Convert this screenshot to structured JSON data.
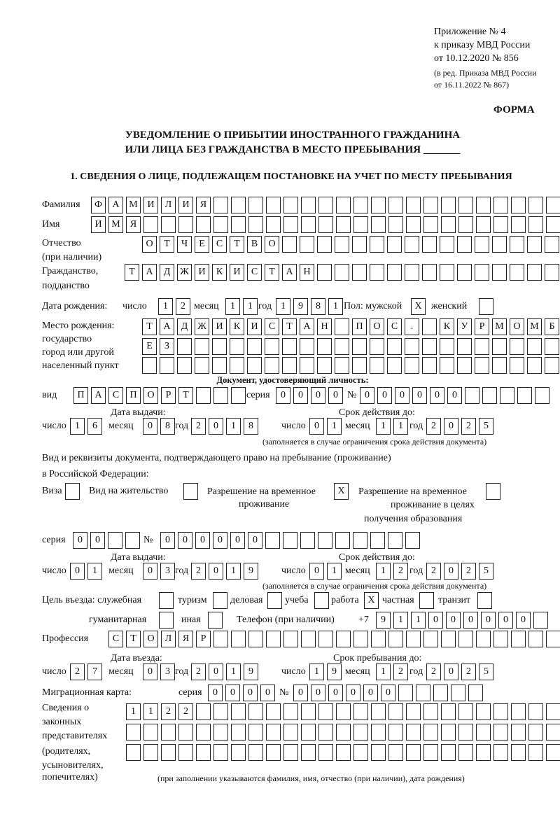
{
  "header": {
    "appendix": "Приложение № 4",
    "order_ref": "к приказу МВД России",
    "order_date": "от 10.12.2020 № 856",
    "edit_ref": "(в ред. Приказа МВД России",
    "edit_date": "от 16.11.2022 № 867)",
    "form_label": "ФОРМА",
    "title_line1": "УВЕДОМЛЕНИЕ О ПРИБЫТИИ ИНОСТРАННОГО ГРАЖДАНИНА",
    "title_line2": "ИЛИ ЛИЦА БЕЗ ГРАЖДАНСТВА В МЕСТО ПРЕБЫВАНИЯ _______"
  },
  "section1": {
    "heading": "1. СВЕДЕНИЯ О ЛИЦЕ, ПОДЛЕЖАЩЕМ ПОСТАНОВКЕ НА УЧЕТ ПО МЕСТУ ПРЕБЫВАНИЯ",
    "surname_label": "Фамилия",
    "surname": [
      "Ф",
      "А",
      "М",
      "И",
      "Л",
      "И",
      "Я",
      "",
      "",
      "",
      "",
      "",
      "",
      "",
      "",
      "",
      "",
      "",
      "",
      "",
      "",
      "",
      "",
      "",
      "",
      "",
      ""
    ],
    "name_label": "Имя",
    "name": [
      "И",
      "М",
      "Я",
      "",
      "",
      "",
      "",
      "",
      "",
      "",
      "",
      "",
      "",
      "",
      "",
      "",
      "",
      "",
      "",
      "",
      "",
      "",
      "",
      "",
      "",
      "",
      ""
    ],
    "patronymic_label1": "Отчество",
    "patronymic_label2": "(при наличии)",
    "patronymic": [
      "О",
      "Т",
      "Ч",
      "Е",
      "С",
      "Т",
      "В",
      "О",
      "",
      "",
      "",
      "",
      "",
      "",
      "",
      "",
      "",
      "",
      "",
      "",
      "",
      "",
      "",
      "",
      ""
    ],
    "citizenship_label1": "Гражданство,",
    "citizenship_label2": "подданство",
    "citizenship": [
      "Т",
      "А",
      "Д",
      "Ж",
      "И",
      "К",
      "И",
      "С",
      "Т",
      "А",
      "Н",
      "",
      "",
      "",
      "",
      "",
      "",
      "",
      "",
      "",
      "",
      "",
      "",
      "",
      ""
    ],
    "birth_date_label": "Дата рождения:",
    "day_label": "число",
    "month_label": "месяц",
    "year_label": "год",
    "birth_day": [
      "1",
      "2"
    ],
    "birth_month": [
      "1",
      "1"
    ],
    "birth_year": [
      "1",
      "9",
      "8",
      "1"
    ],
    "sex_label": "Пол: мужской",
    "male": "X",
    "female_label": "женский",
    "female": "",
    "birth_place_label1": "Место рождения:",
    "birth_place_label2": "государство",
    "birth_place_label3": "город или другой",
    "birth_place_label4": "населенный пункт",
    "birth_place_row1": [
      "Т",
      "А",
      "Д",
      "Ж",
      "И",
      "К",
      "И",
      "С",
      "Т",
      "А",
      "Н",
      "",
      "П",
      "О",
      "С",
      ".",
      "",
      "К",
      "У",
      "Р",
      "М",
      "О",
      "М",
      "Б"
    ],
    "birth_place_row2": [
      "Е",
      "З",
      "",
      "",
      "",
      "",
      "",
      "",
      "",
      "",
      "",
      "",
      "",
      "",
      "",
      "",
      "",
      "",
      "",
      "",
      "",
      "",
      "",
      ""
    ],
    "birth_place_row3": [
      "",
      "",
      "",
      "",
      "",
      "",
      "",
      "",
      "",
      "",
      "",
      "",
      "",
      "",
      "",
      "",
      "",
      "",
      "",
      "",
      "",
      "",
      "",
      ""
    ],
    "id_doc_heading": "Документ, удостоверяющий личность:",
    "doc_type_label": "вид",
    "doc_type": [
      "П",
      "А",
      "С",
      "П",
      "О",
      "Р",
      "Т",
      "",
      "",
      ""
    ],
    "series_label": "серия",
    "doc_series": [
      "0",
      "0",
      "0",
      "0"
    ],
    "number_label": "№",
    "doc_number": [
      "0",
      "0",
      "0",
      "0",
      "0",
      "0",
      "",
      "",
      "",
      "",
      ""
    ],
    "issue_date_label": "Дата выдачи:",
    "valid_until_label": "Срок действия до:",
    "doc_issue_day": [
      "1",
      "6"
    ],
    "doc_issue_month": [
      "0",
      "8"
    ],
    "doc_issue_year": [
      "2",
      "0",
      "1",
      "8"
    ],
    "doc_valid_day": [
      "0",
      "1"
    ],
    "doc_valid_month": [
      "1",
      "1"
    ],
    "doc_valid_year": [
      "2",
      "0",
      "2",
      "5"
    ],
    "validity_note": "(заполняется в случае ограничения срока действия документа)",
    "permit_label1": "Вид и реквизиты документа, подтверждающего право на пребывание (проживание)",
    "permit_label2": "в Российской Федерации:",
    "visa_label": "Виза",
    "visa": "",
    "residence_label": "Вид на жительство",
    "residence": "",
    "temp_res_label1": "Разрешение на временное",
    "temp_res_label2": "проживание",
    "temp_res": "X",
    "temp_edu_label1": "Разрешение на временное",
    "temp_edu_label2": "проживание в целях",
    "temp_edu_label3": "получения образования",
    "temp_edu": "",
    "permit_series": [
      "0",
      "0",
      "",
      ""
    ],
    "permit_number": [
      "0",
      "0",
      "0",
      "0",
      "0",
      "0",
      "",
      "",
      "",
      "",
      "",
      "",
      "",
      "",
      ""
    ],
    "permit_issue_day": [
      "0",
      "1"
    ],
    "permit_issue_month": [
      "0",
      "3"
    ],
    "permit_issue_year": [
      "2",
      "0",
      "1",
      "9"
    ],
    "permit_valid_day": [
      "0",
      "1"
    ],
    "permit_valid_month": [
      "1",
      "2"
    ],
    "permit_valid_year": [
      "2",
      "0",
      "2",
      "5"
    ],
    "purpose_label": "Цель въезда: служебная",
    "purpose_official": "",
    "tourism_label": "туризм",
    "purpose_tourism": "",
    "business_label": "деловая",
    "purpose_business": "",
    "study_label": "учеба",
    "purpose_study": "",
    "work_label": "работа",
    "purpose_work": "X",
    "private_label": "частная",
    "purpose_private": "",
    "transit_label": "транзит",
    "purpose_transit": "",
    "humanitarian_label": "гуманитарная",
    "purpose_humanitarian": "",
    "other_label": "иная",
    "purpose_other": "",
    "phone_label": "Телефон (при наличии)",
    "phone_prefix": "+7",
    "phone": [
      "9",
      "1",
      "1",
      "0",
      "0",
      "0",
      "0",
      "0",
      "0",
      ""
    ],
    "profession_label": "Профессия",
    "profession": [
      "С",
      "Т",
      "О",
      "Л",
      "Я",
      "Р",
      "",
      "",
      "",
      "",
      "",
      "",
      "",
      "",
      "",
      "",
      "",
      "",
      "",
      "",
      "",
      "",
      "",
      "",
      "",
      ""
    ],
    "entry_date_label": "Дата въезда:",
    "stay_until_label": "Срок пребывания до:",
    "entry_day": [
      "2",
      "7"
    ],
    "entry_month": [
      "0",
      "3"
    ],
    "entry_year": [
      "2",
      "0",
      "1",
      "9"
    ],
    "stay_day": [
      "1",
      "9"
    ],
    "stay_month": [
      "1",
      "2"
    ],
    "stay_year": [
      "2",
      "0",
      "2",
      "5"
    ],
    "migration_card_label": "Миграционная карта:",
    "mc_series": [
      "0",
      "0",
      "0",
      "0"
    ],
    "mc_number": [
      "0",
      "0",
      "0",
      "0",
      "0",
      "0",
      "",
      "",
      "",
      "",
      ""
    ],
    "reps_label1": "Сведения о",
    "reps_label2": "законных",
    "reps_label3": "представителях",
    "reps_label4": "(родителях,",
    "reps_label5": "усыновителях,",
    "reps_label6": "попечителях)",
    "reps_row1": [
      "1",
      "1",
      "2",
      "2",
      "",
      "",
      "",
      "",
      "",
      "",
      "",
      "",
      "",
      "",
      "",
      "",
      "",
      "",
      "",
      "",
      "",
      "",
      "",
      "",
      ""
    ],
    "reps_row2": [
      "",
      "",
      "",
      "",
      "",
      "",
      "",
      "",
      "",
      "",
      "",
      "",
      "",
      "",
      "",
      "",
      "",
      "",
      "",
      "",
      "",
      "",
      "",
      "",
      ""
    ],
    "reps_row3": [
      "",
      "",
      "",
      "",
      "",
      "",
      "",
      "",
      "",
      "",
      "",
      "",
      "",
      "",
      "",
      "",
      "",
      "",
      "",
      "",
      "",
      "",
      "",
      "",
      ""
    ],
    "reps_note": "(при заполнении указываются фамилия, имя, отчество (при наличии), дата рождения)"
  }
}
